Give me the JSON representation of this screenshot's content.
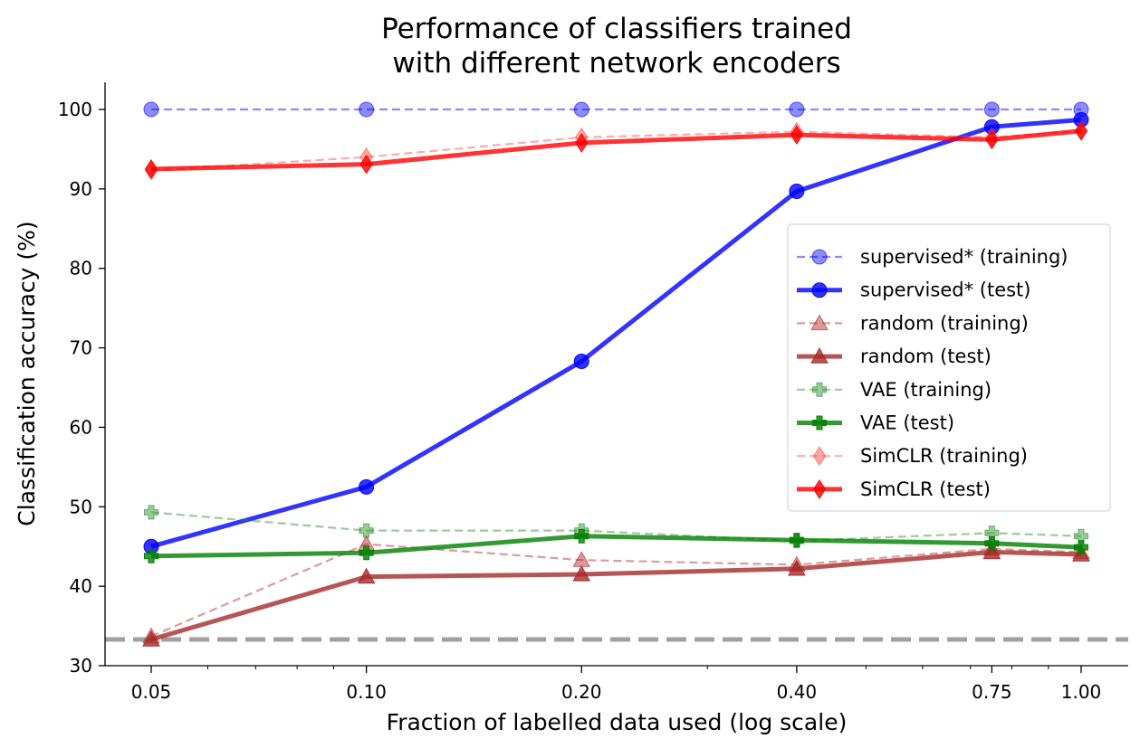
{
  "chart_data": {
    "type": "line",
    "title_lines": [
      "Performance of classifiers trained",
      "with different network encoders"
    ],
    "xlabel": "Fraction of labelled data used (log scale)",
    "ylabel": "Classification accuracy (%)",
    "xscale": "log",
    "x": [
      0.05,
      0.1,
      0.2,
      0.4,
      0.75,
      1.0
    ],
    "x_tick_labels": [
      "0.05",
      "0.10",
      "0.20",
      "0.40",
      "0.75",
      "1.00"
    ],
    "ylim": [
      30,
      103
    ],
    "y_ticks": [
      30,
      40,
      50,
      60,
      70,
      80,
      90,
      100
    ],
    "chance_level": 33.3,
    "grid": false,
    "legend_position": "center-right",
    "series": [
      {
        "name": "supervised* (training)",
        "color": "#0000ff",
        "marker": "circle",
        "style": "dashed",
        "values": [
          100,
          100,
          100,
          100,
          100,
          100
        ]
      },
      {
        "name": "supervised* (test)",
        "color": "#0000ff",
        "marker": "circle",
        "style": "solid",
        "values": [
          45.0,
          52.5,
          68.3,
          89.7,
          97.8,
          98.7
        ]
      },
      {
        "name": "random (training)",
        "color": "#b22222",
        "marker": "triangle",
        "style": "dashed",
        "values": [
          33.7,
          45.3,
          43.3,
          42.7,
          44.7,
          44.3
        ]
      },
      {
        "name": "random (test)",
        "color": "#a52a2a",
        "marker": "triangle",
        "style": "solid",
        "values": [
          33.3,
          41.2,
          41.5,
          42.2,
          44.3,
          44.0
        ]
      },
      {
        "name": "VAE (training)",
        "color": "#228b22",
        "marker": "plus",
        "style": "dashed",
        "values": [
          49.3,
          47.0,
          47.0,
          45.7,
          46.7,
          46.3
        ]
      },
      {
        "name": "VAE (test)",
        "color": "#008000",
        "marker": "plus",
        "style": "solid",
        "values": [
          43.8,
          44.2,
          46.3,
          45.8,
          45.4,
          44.9
        ]
      },
      {
        "name": "SimCLR (training)",
        "color": "#ff4040",
        "marker": "diamond",
        "style": "dashed",
        "values": [
          92.3,
          94.0,
          96.5,
          97.2,
          96.5,
          97.3
        ]
      },
      {
        "name": "SimCLR (test)",
        "color": "#ff0000",
        "marker": "diamond",
        "style": "solid",
        "values": [
          92.5,
          93.1,
          95.8,
          96.8,
          96.2,
          97.3
        ]
      }
    ]
  }
}
